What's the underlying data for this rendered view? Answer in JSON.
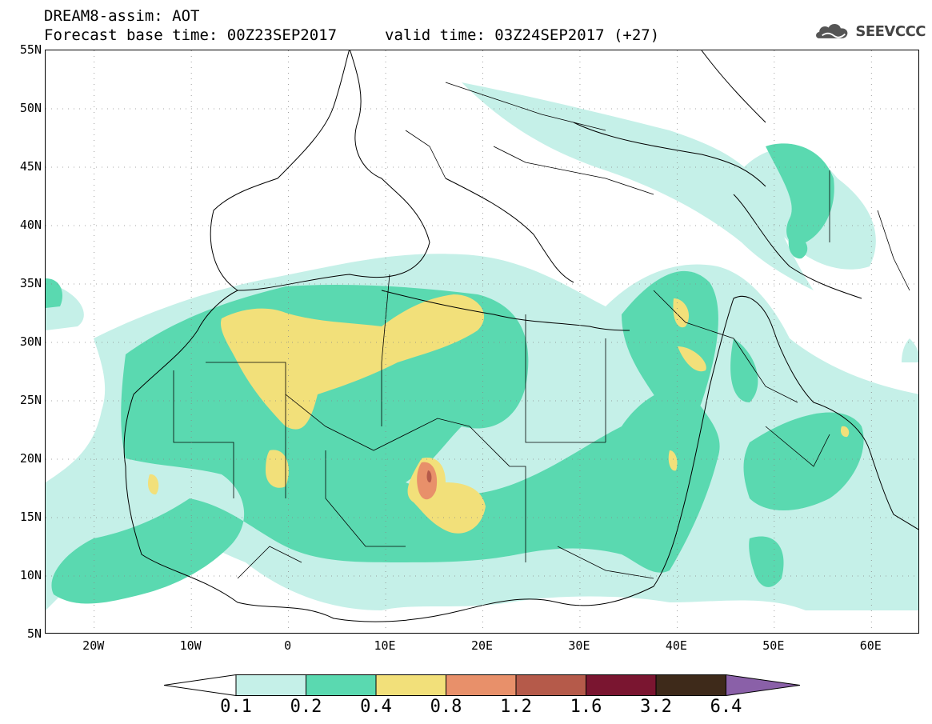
{
  "title": {
    "line1": "DREAM8-assim: AOT",
    "base_time": "Forecast base time: 00Z23SEP2017",
    "valid_time": "valid time: 03Z24SEP2017 (+27)"
  },
  "logo": {
    "icon": "cloud-logo-icon",
    "text": "SEEVCCC"
  },
  "axes": {
    "lat_labels": [
      "55N",
      "50N",
      "45N",
      "40N",
      "35N",
      "30N",
      "25N",
      "20N",
      "15N",
      "10N",
      "5N"
    ],
    "lon_labels": [
      "20W",
      "10W",
      "0",
      "10E",
      "20E",
      "30E",
      "40E",
      "50E",
      "60E"
    ],
    "lat_range": [
      5,
      55
    ],
    "lon_range": [
      -25,
      65
    ],
    "grid": "dotted"
  },
  "legend": {
    "labels": [
      "0.1",
      "0.2",
      "0.4",
      "0.8",
      "1.2",
      "1.6",
      "3.2",
      "6.4"
    ],
    "colors": [
      "#c5f0e8",
      "#5ad9b0",
      "#f2e07a",
      "#e8906a",
      "#b55a4a",
      "#7a1530",
      "#3e2a1a",
      "#8a60a8"
    ],
    "under_color": "#ffffff"
  },
  "fields": {
    "colors": {
      "low": "#c5f0e8",
      "mid": "#5ad9b0",
      "high": "#f2e07a",
      "vhigh": "#e8906a",
      "peak": "#b55a4a"
    }
  }
}
